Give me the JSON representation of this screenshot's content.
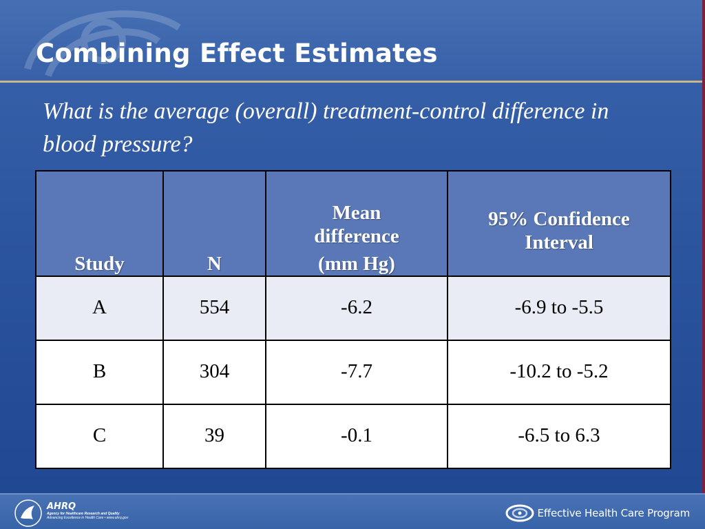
{
  "slide": {
    "title": "Combining Effect Estimates",
    "subtitle": "What is the average (overall) treatment-control difference in blood pressure?"
  },
  "table": {
    "headers": {
      "study": "Study",
      "n": "N",
      "mean_line1": "Mean",
      "mean_line2": "difference",
      "mean_line3": "(mm Hg)",
      "ci_line1": "95% Confidence",
      "ci_line2": "Interval"
    },
    "rows": [
      {
        "study": "A",
        "n": "554",
        "mean": "-6.2",
        "ci": "-6.9 to -5.5"
      },
      {
        "study": "B",
        "n": "304",
        "mean": "-7.7",
        "ci": "-10.2 to -5.2"
      },
      {
        "study": "C",
        "n": "39",
        "mean": "-0.1",
        "ci": "-6.5 to 6.3"
      }
    ]
  },
  "footer": {
    "ahrq_logo": "AHRQ",
    "ahrq_line1": "Agency for Healthcare Research and Quality",
    "ahrq_line2": "Advancing Excellence in Health Care • www.ahrq.gov",
    "program": "Effective Health Care Program"
  },
  "colors": {
    "background": "#2c559f",
    "header_row": "#5a78b8",
    "row_shade": "#e9ecf4",
    "rule": "#c9b98a"
  },
  "icons": [
    "hhs-eagle-seal-icon",
    "ehc-swirl-logo-icon",
    "background-swirl-icon"
  ]
}
